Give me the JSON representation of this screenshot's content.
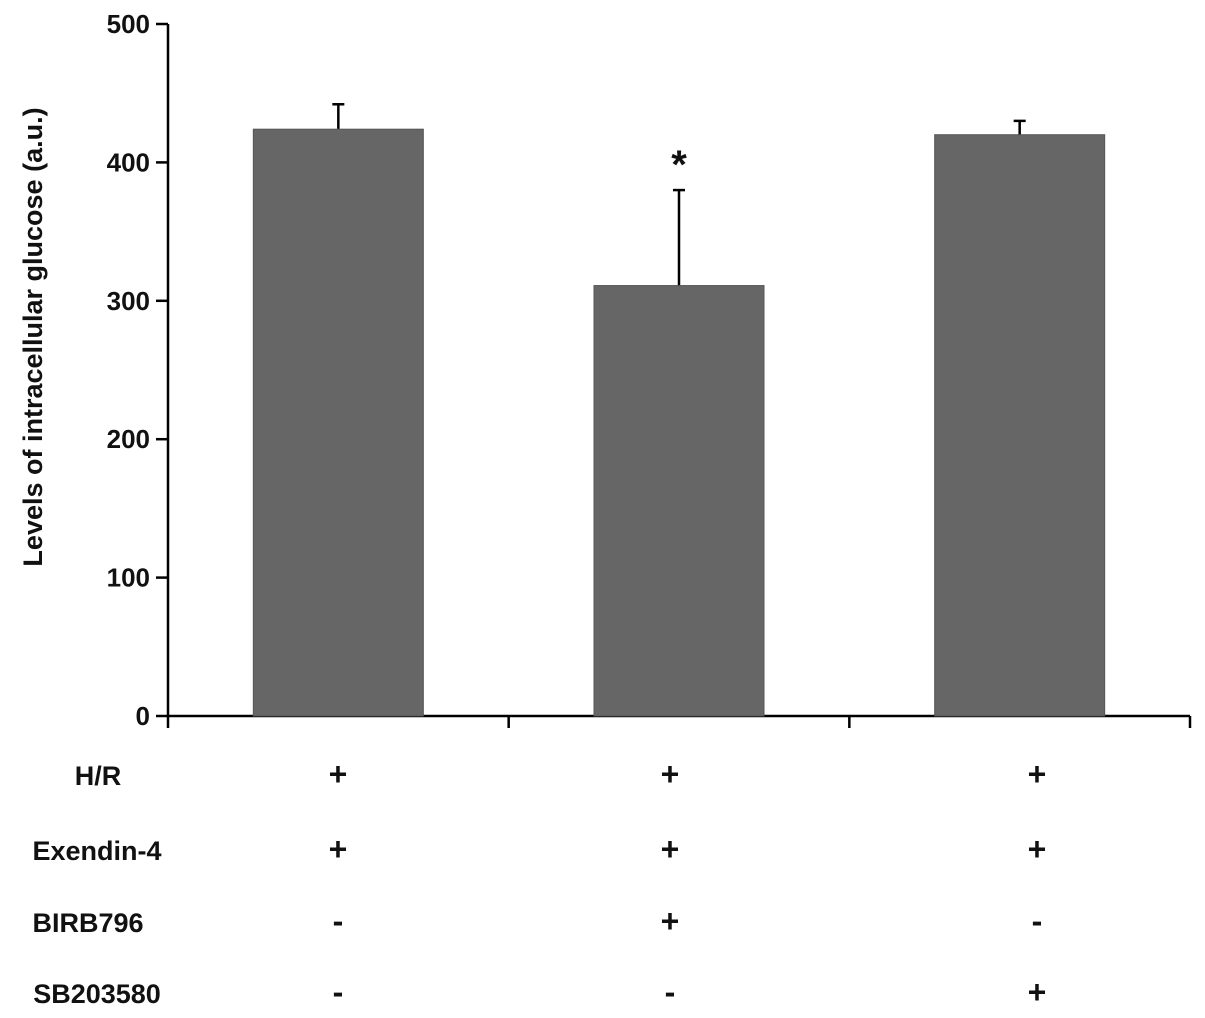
{
  "chart_data": {
    "type": "bar",
    "ylabel": "Levels of intracellular glucose (a.u.)",
    "ylim": [
      0,
      500
    ],
    "yticks": [
      0,
      100,
      200,
      300,
      400,
      500
    ],
    "bar_color": "#666666",
    "bars": [
      {
        "value": 424,
        "error": 18,
        "annotation": ""
      },
      {
        "value": 311,
        "error": 69,
        "annotation": "*"
      },
      {
        "value": 420,
        "error": 10,
        "annotation": ""
      }
    ],
    "conditions": [
      {
        "label": "H/R",
        "marks": [
          "+",
          "+",
          "+"
        ]
      },
      {
        "label": "Exendin-4",
        "marks": [
          "+",
          "+",
          "+"
        ]
      },
      {
        "label": "BIRB796",
        "marks": [
          "-",
          "+",
          "-"
        ]
      },
      {
        "label": "SB203580",
        "marks": [
          "-",
          "-",
          "+"
        ]
      }
    ]
  }
}
